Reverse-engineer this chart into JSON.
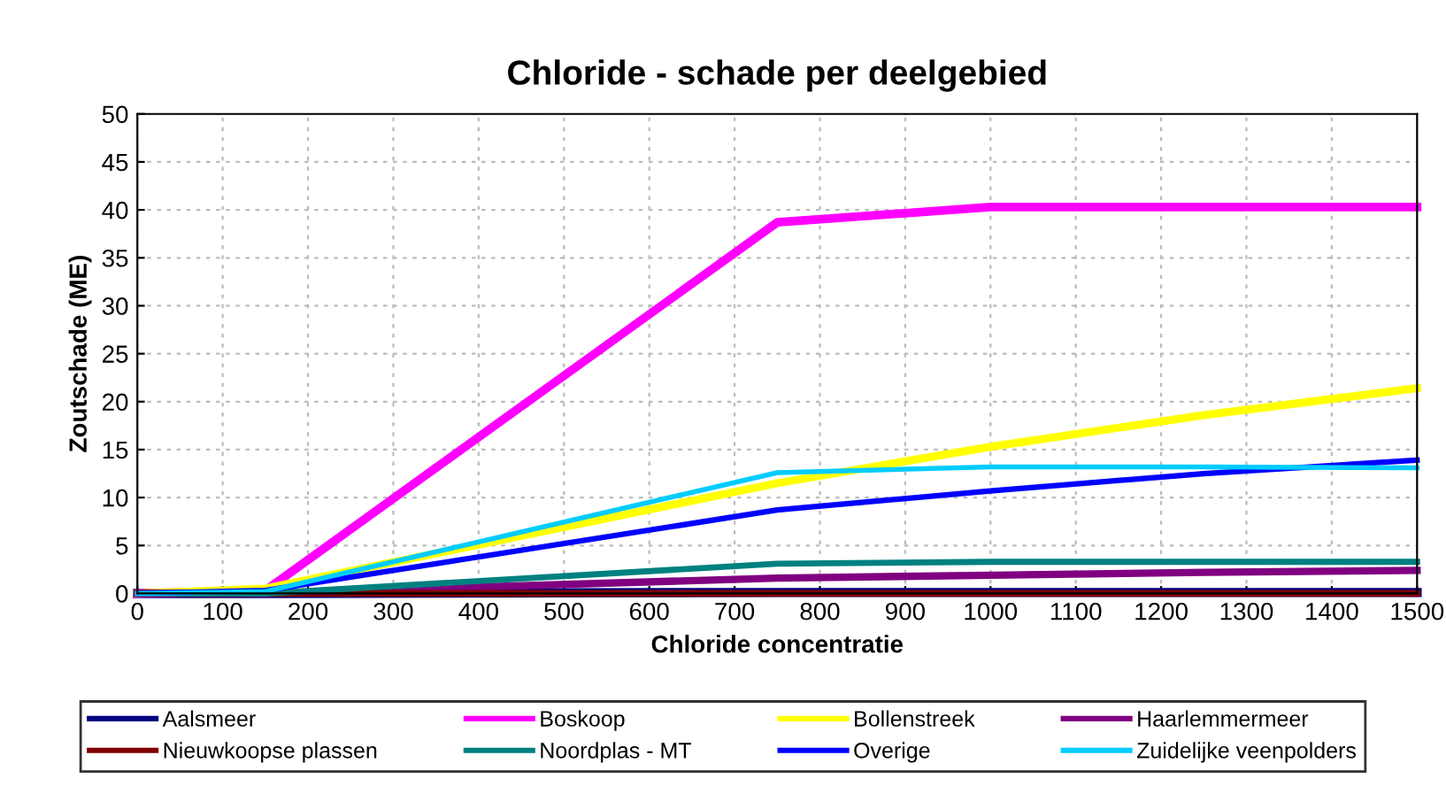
{
  "chart_data": {
    "type": "line",
    "title": "Chloride - schade per deelgebied",
    "xlabel": "Chloride concentratie",
    "ylabel": "Zoutschade (ME)",
    "x": [
      0,
      150,
      750,
      1000,
      1250,
      1500
    ],
    "xlim": [
      0,
      1500
    ],
    "xticks": [
      0,
      100,
      200,
      300,
      400,
      500,
      600,
      700,
      800,
      900,
      1000,
      1100,
      1200,
      1300,
      1400,
      1500
    ],
    "ylim": [
      0,
      50
    ],
    "yticks": [
      0,
      5,
      10,
      15,
      20,
      25,
      30,
      35,
      40,
      45,
      50
    ],
    "grid": true,
    "legend": "bottom",
    "marker": "none",
    "line_style": "solid",
    "series": [
      {
        "name": "Aalsmeer",
        "color": "#000080",
        "values": [
          0,
          0,
          0.1,
          0.1,
          0.1,
          0.1
        ]
      },
      {
        "name": "Boskoop",
        "color": "#ff00ff",
        "values": [
          0,
          0.3,
          38.7,
          40.3,
          40.3,
          40.3
        ]
      },
      {
        "name": "Bollenstreek",
        "color": "#ffff00",
        "values": [
          0,
          0.5,
          11.5,
          15.3,
          18.6,
          21.4
        ]
      },
      {
        "name": "Haarlemmermeer",
        "color": "#800080",
        "values": [
          0,
          0,
          1.6,
          1.9,
          2.2,
          2.4
        ]
      },
      {
        "name": "Nieuwkoopse plassen",
        "color": "#800000",
        "values": [
          0,
          0,
          0,
          0,
          0,
          0
        ]
      },
      {
        "name": "Noordplas - MT",
        "color": "#008080",
        "values": [
          0,
          0,
          3.1,
          3.3,
          3.3,
          3.3
        ]
      },
      {
        "name": "Overige",
        "color": "#0000ff",
        "values": [
          0,
          0.3,
          8.7,
          10.7,
          12.5,
          13.9
        ]
      },
      {
        "name": "Zuidelijke veenpolders",
        "color": "#00ccff",
        "values": [
          0,
          0.2,
          12.6,
          13.2,
          13.2,
          13.1
        ]
      }
    ]
  }
}
